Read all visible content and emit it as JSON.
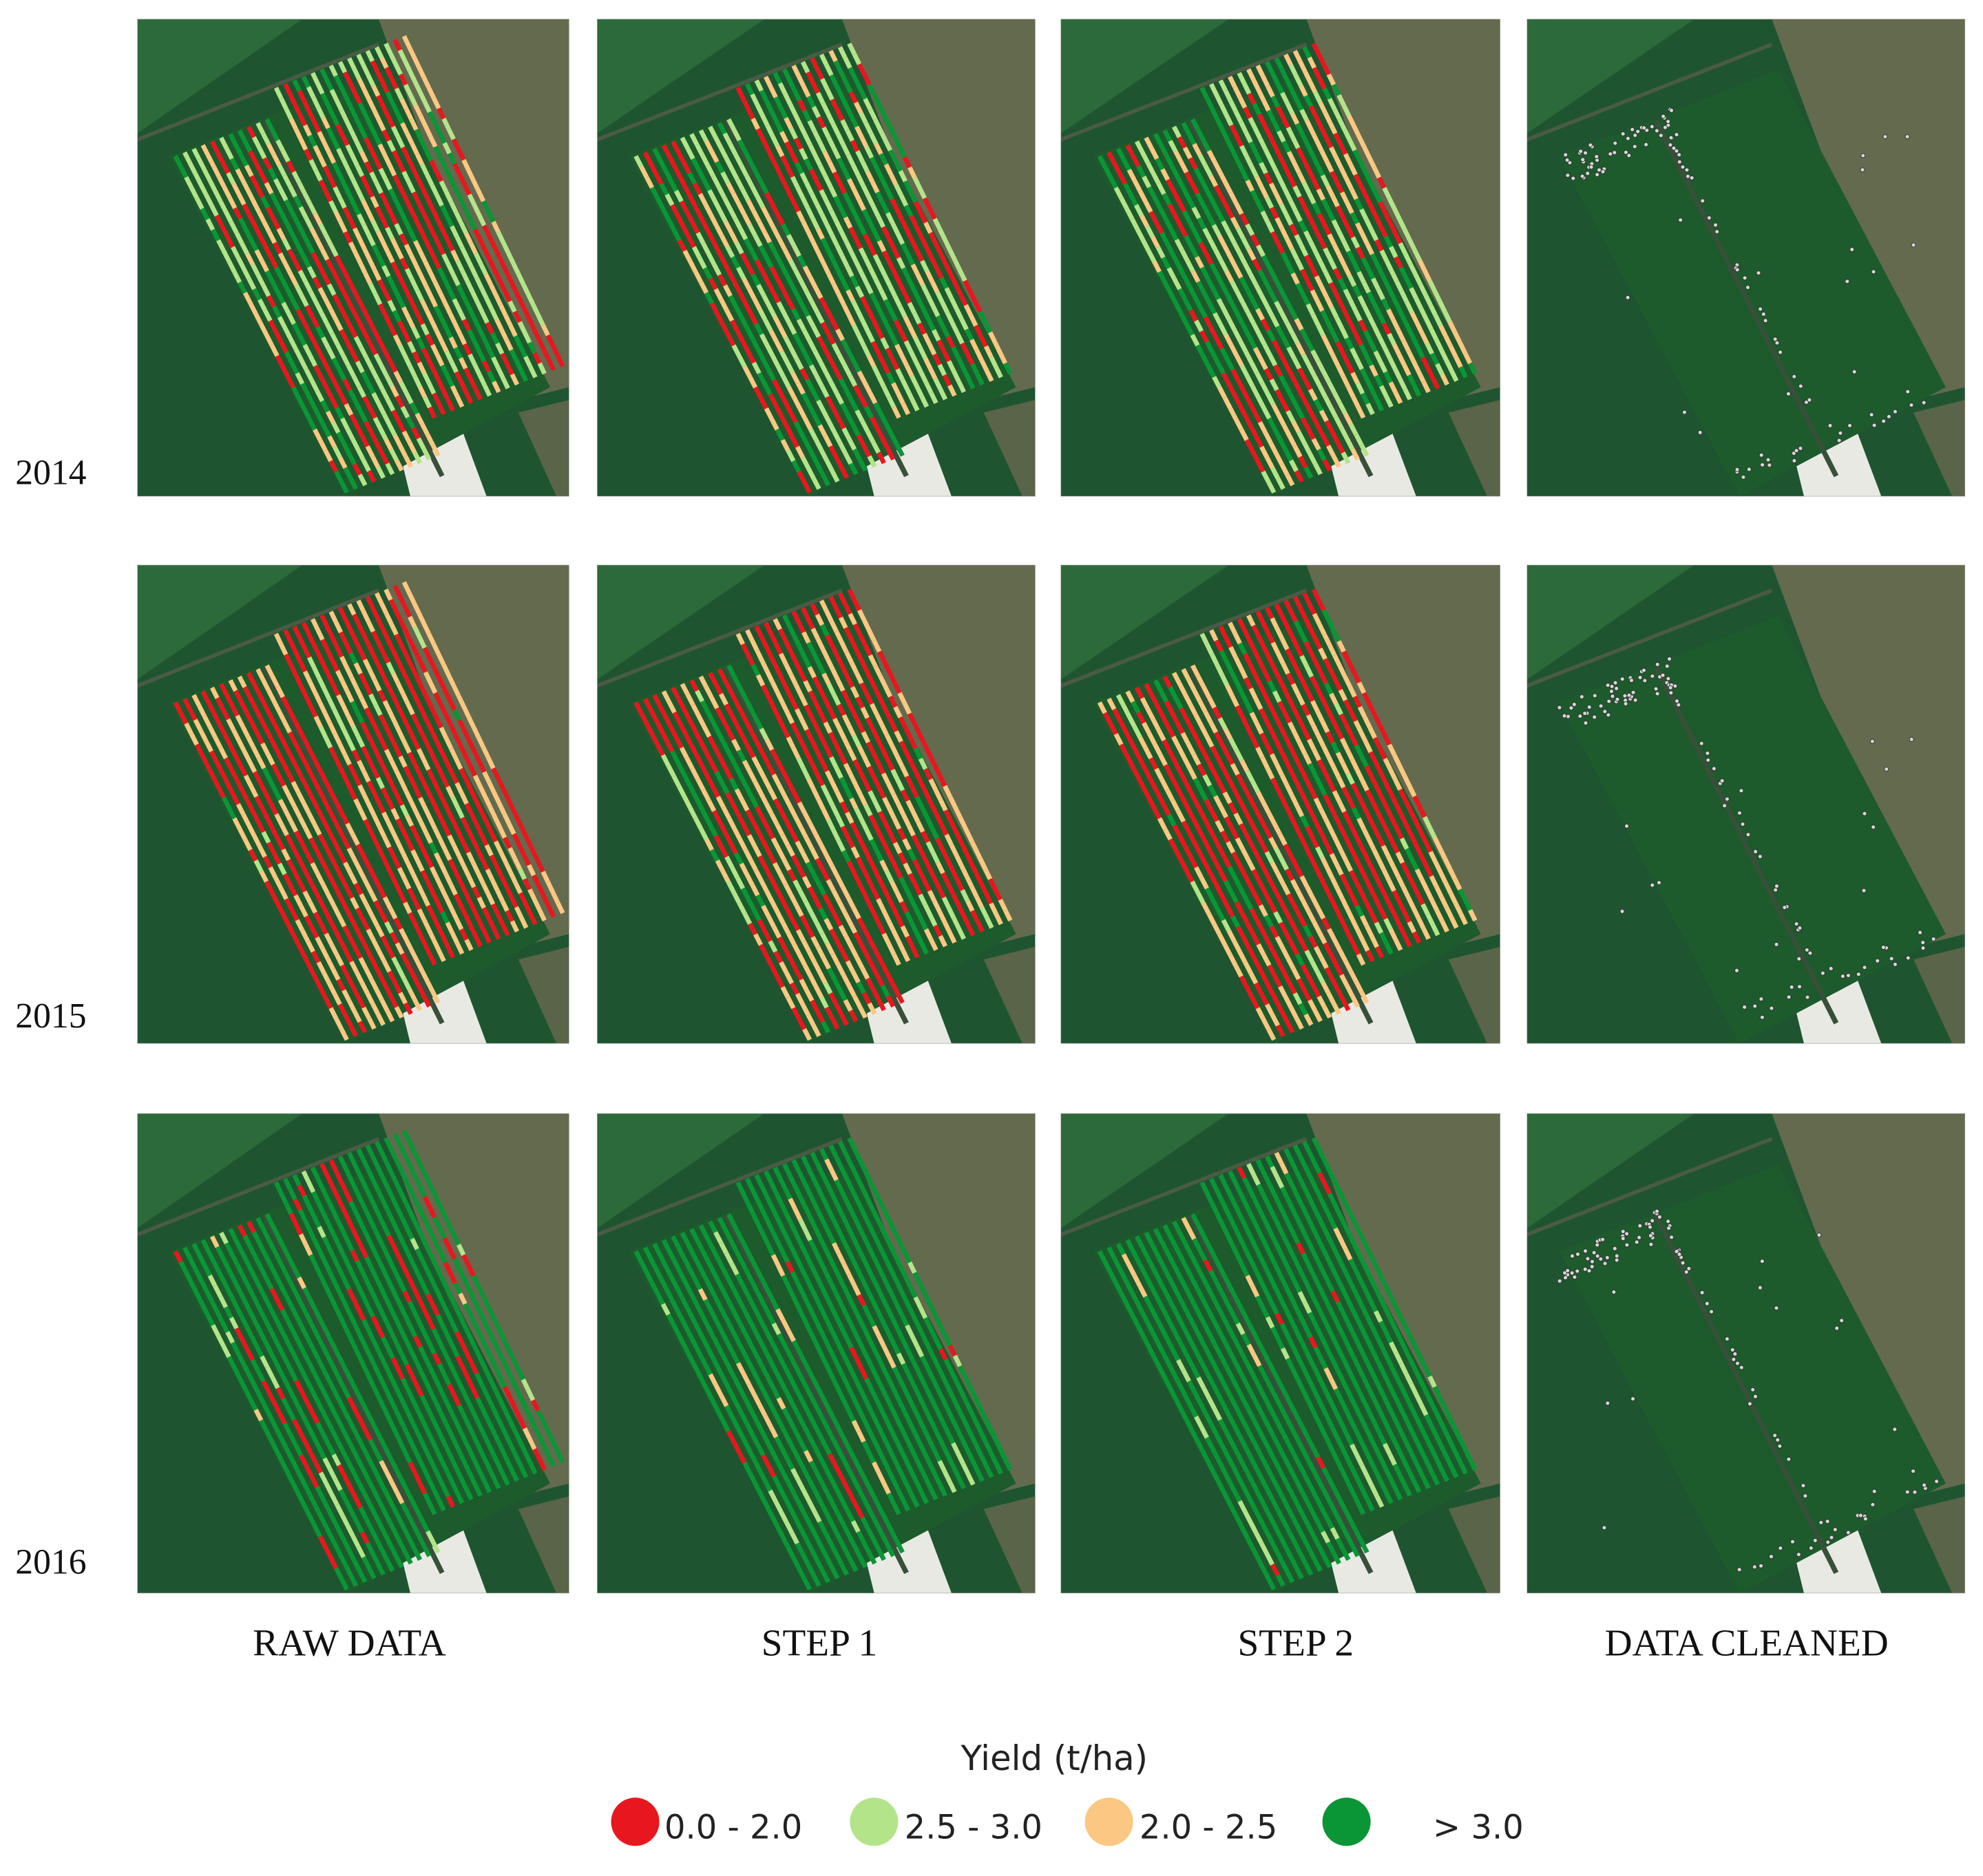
{
  "figure": {
    "rows": [
      "2014",
      "2015",
      "2016"
    ],
    "columns": [
      "RAW DATA",
      "STEP 1",
      "STEP 2",
      "DATA CLEANED"
    ],
    "legend": {
      "title": "Yield (t/ha)",
      "items": [
        {
          "label": "0.0 - 2.0",
          "color": "#e8171f"
        },
        {
          "label": "2.5 - 3.0",
          "color": "#b4e48a"
        },
        {
          "label": "2.0 - 2.5",
          "color": "#fac882"
        },
        {
          "label": "> 3.0",
          "color": "#0a9636"
        }
      ]
    }
  }
}
